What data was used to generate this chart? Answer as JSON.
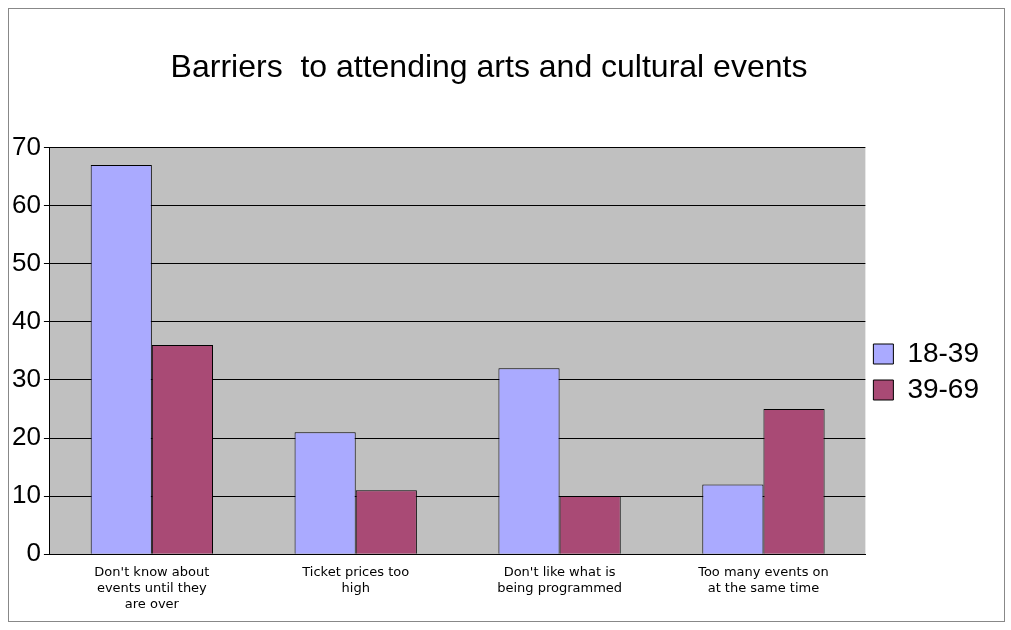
{
  "chart_data": {
    "type": "bar",
    "title": "Barriers  to attending arts and cultural events",
    "categories": [
      "Don't know about events until they are over",
      "Ticket prices too high",
      "Don't like what is being programmed",
      "Too many events on at the same time"
    ],
    "series": [
      {
        "name": "18-39",
        "color": "#aaaaff",
        "values": [
          67,
          21,
          32,
          12
        ]
      },
      {
        "name": "39-69",
        "color": "#a94a75",
        "values": [
          36,
          11,
          10,
          25
        ]
      }
    ],
    "ylim": [
      0,
      70
    ],
    "yticks": [
      0,
      10,
      20,
      30,
      40,
      50,
      60,
      70
    ],
    "grid": "y",
    "legend": "right"
  }
}
